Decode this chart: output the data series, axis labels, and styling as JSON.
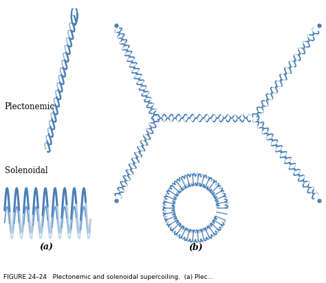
{
  "panel_a_bg": "#f5e6c0",
  "blue": "#4a7fb5",
  "blue_light": "#6fa0cc",
  "label_a": "(a)",
  "label_b": "(b)",
  "plectonemic_label": "Plectonemic",
  "solenoidal_label": "Solenoidal",
  "figure_caption": "FIGURE 24–24   Plectonemic and solenoidal supercoiling.  (a) Plec...",
  "fig_width": 4.74,
  "fig_height": 4.12,
  "dpi": 100
}
